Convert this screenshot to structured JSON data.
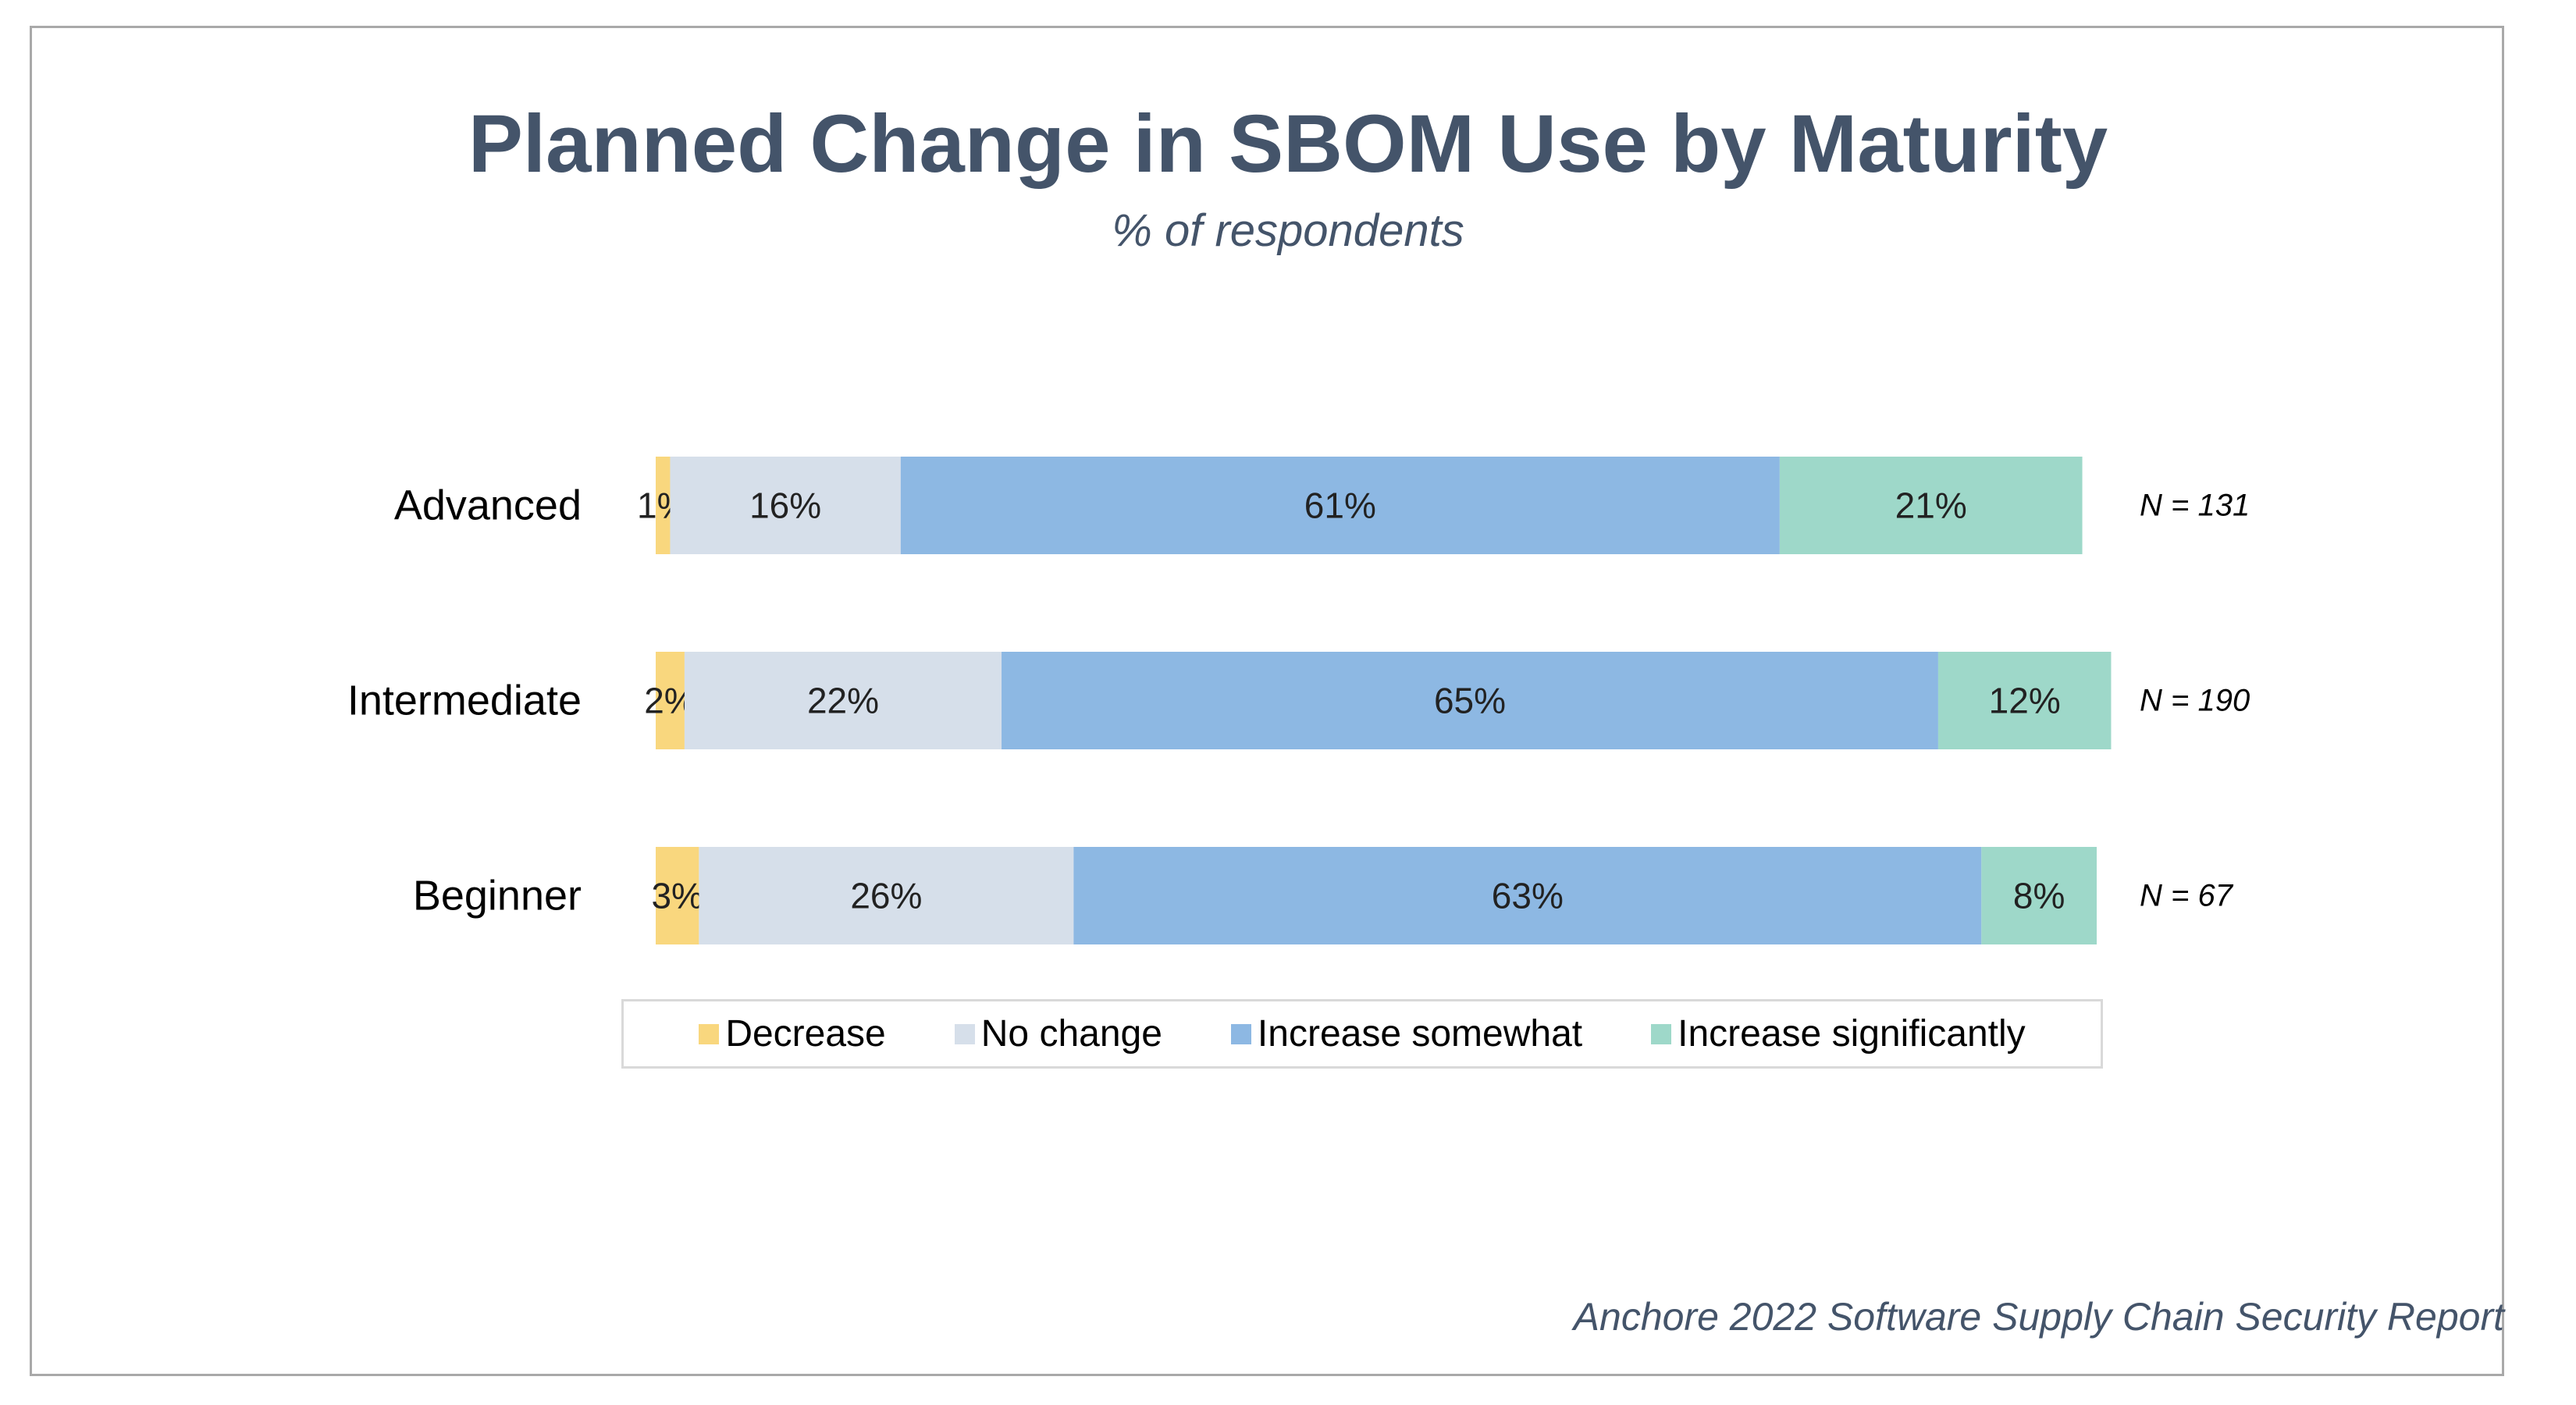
{
  "title": "Planned Change in SBOM Use by Maturity",
  "subtitle": "% of respondents",
  "source": "Anchore 2022 Software Supply Chain Security Report",
  "chart_data": {
    "type": "bar",
    "orientation": "horizontal",
    "stacked": true,
    "categories": [
      "Advanced",
      "Intermediate",
      "Beginner"
    ],
    "series": [
      {
        "name": "Decrease",
        "values": [
          1,
          2,
          3
        ],
        "labels": [
          "1%",
          "2%",
          "3%"
        ],
        "color": "#f9d77e"
      },
      {
        "name": "No change",
        "values": [
          16,
          22,
          26
        ],
        "labels": [
          "16%",
          "22%",
          "26%"
        ],
        "color": "#d6dfea"
      },
      {
        "name": "Increase somewhat",
        "values": [
          61,
          65,
          63
        ],
        "labels": [
          "61%",
          "65%",
          "63%"
        ],
        "color": "#8db8e3"
      },
      {
        "name": "Increase significantly",
        "values": [
          21,
          12,
          8
        ],
        "labels": [
          "21%",
          "12%",
          "8%"
        ],
        "color": "#9ed8c9"
      }
    ],
    "annotations": [
      "N = 131",
      "N = 190",
      "N = 67"
    ],
    "xlim": [
      0,
      100
    ],
    "grid": false,
    "legend_position": "bottom"
  }
}
